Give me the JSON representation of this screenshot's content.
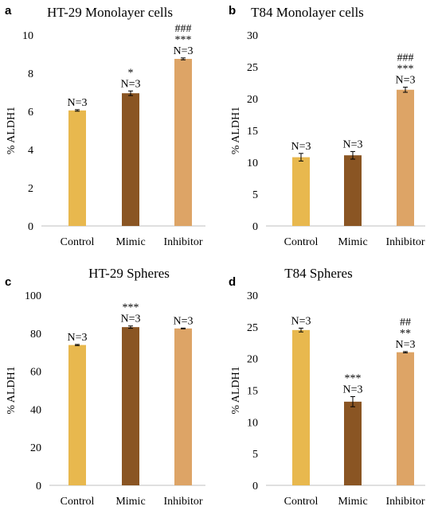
{
  "colors": {
    "control": "#e8b84e",
    "mimic": "#8a5523",
    "inhibitor": "#dda466"
  },
  "chart_data": [
    {
      "type": "bar",
      "panel": "a",
      "title": "HT-29 Monolayer cells",
      "ylabel": "% ALDH1",
      "ylim": [
        0,
        10
      ],
      "yticks": [
        0,
        2,
        4,
        6,
        8,
        10
      ],
      "categories": [
        "Control",
        "Mimic",
        "Inhibitor"
      ],
      "values": [
        6.05,
        6.95,
        8.75
      ],
      "errors": [
        0.04,
        0.12,
        0.05
      ],
      "annotations": [
        [
          "N=3"
        ],
        [
          "*",
          "N=3"
        ],
        [
          "###",
          "***",
          "N=3"
        ]
      ]
    },
    {
      "type": "bar",
      "panel": "b",
      "title": "T84 Monolayer cells",
      "ylabel": "% ALDH1",
      "ylim": [
        0,
        30
      ],
      "yticks": [
        0,
        5,
        10,
        15,
        20,
        25,
        30
      ],
      "categories": [
        "Control",
        "Mimic",
        "Inhibitor"
      ],
      "values": [
        10.8,
        11.1,
        21.4
      ],
      "errors": [
        0.6,
        0.6,
        0.4
      ],
      "annotations": [
        [
          "N=3"
        ],
        [
          "N=3"
        ],
        [
          "###",
          "***",
          "N=3"
        ]
      ]
    },
    {
      "type": "bar",
      "panel": "c",
      "title": "HT-29 Spheres",
      "ylabel": "% ALDH1",
      "ylim": [
        0,
        100
      ],
      "yticks": [
        0,
        20,
        40,
        60,
        80,
        100
      ],
      "categories": [
        "Control",
        "Mimic",
        "Inhibitor"
      ],
      "values": [
        73.8,
        83.2,
        82.5
      ],
      "errors": [
        0.3,
        0.6,
        0.2
      ],
      "annotations": [
        [
          "N=3"
        ],
        [
          "***",
          "N=3"
        ],
        [
          "N=3"
        ]
      ]
    },
    {
      "type": "bar",
      "panel": "d",
      "title": "T84 Spheres",
      "ylabel": "% ALDH1",
      "ylim": [
        0,
        30
      ],
      "yticks": [
        0,
        5,
        10,
        15,
        20,
        25,
        30
      ],
      "categories": [
        "Control",
        "Mimic",
        "Inhibitor"
      ],
      "values": [
        24.5,
        13.2,
        21.0
      ],
      "errors": [
        0.3,
        0.8,
        0.1
      ],
      "annotations": [
        [
          "N=3"
        ],
        [
          "***",
          "N=3"
        ],
        [
          "##",
          "**",
          "N=3"
        ]
      ]
    }
  ]
}
